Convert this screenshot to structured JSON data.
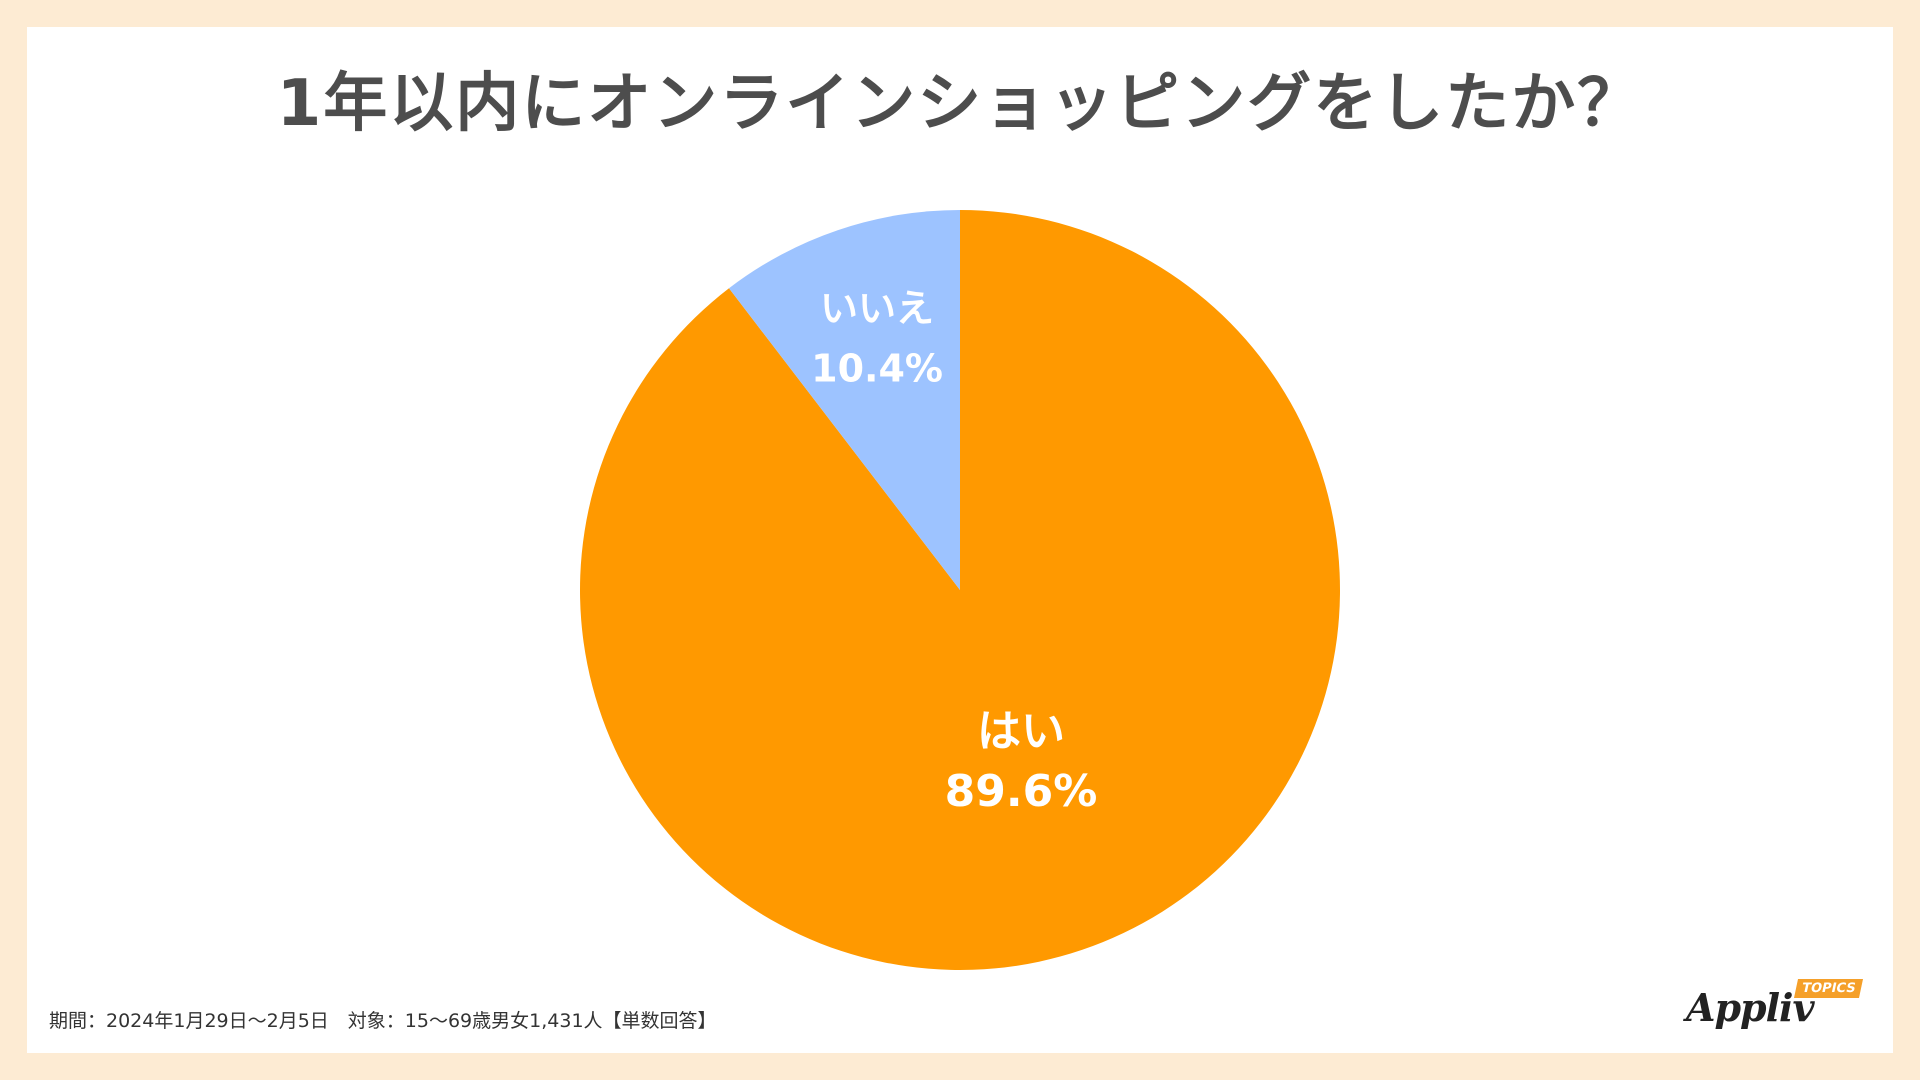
{
  "title": "1年以内にオンラインショッピングをしたか？",
  "footnote": "期間：2024年1月29日〜2月5日　対象：15〜69歳男女1,431人【単数回答】",
  "logo": {
    "word": "Appliv",
    "badge": "TOPICS"
  },
  "chart_data": {
    "type": "pie",
    "title": "1年以内にオンラインショッピングをしたか？",
    "slices": [
      {
        "label": "はい",
        "value": 89.6,
        "display": "89.6%",
        "color": "#ff9900"
      },
      {
        "label": "いいえ",
        "value": 10.4,
        "display": "10.4%",
        "color": "#9dc3ff"
      }
    ],
    "start_angle_deg": 0,
    "direction": "clockwise",
    "label_color": "#ffffff"
  }
}
